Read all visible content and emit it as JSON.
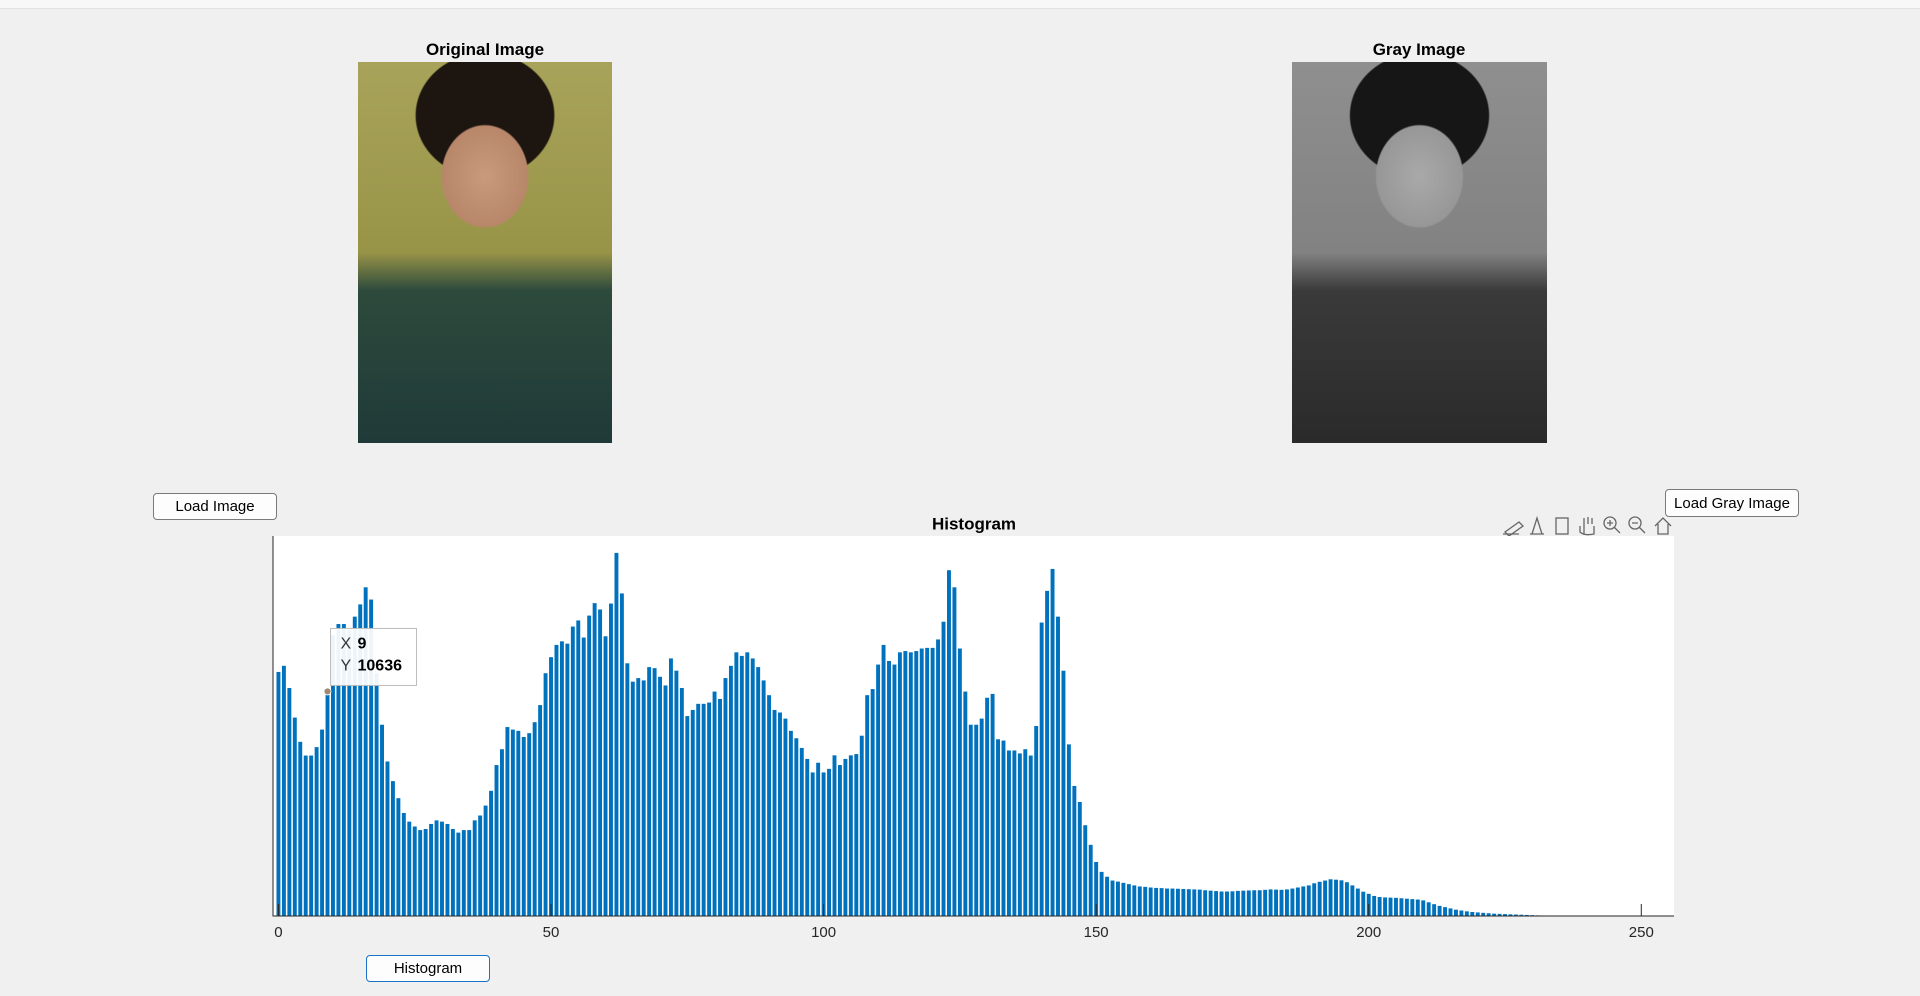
{
  "window": {
    "original_title": "Original Image",
    "gray_title": "Gray Image",
    "buttons": {
      "load_image": "Load Image",
      "load_gray_image": "Load Gray Image",
      "histogram": "Histogram"
    }
  },
  "chart_data": {
    "type": "bar",
    "title": "Histogram",
    "color": "#0072bd",
    "x": [
      0,
      1,
      2,
      3,
      4,
      5,
      6,
      7,
      8,
      9,
      10,
      11,
      12,
      13,
      14,
      15,
      16,
      17,
      18,
      19,
      20,
      21,
      22,
      23,
      24,
      25,
      26,
      27,
      28,
      29,
      30,
      31,
      32,
      33,
      34,
      35,
      36,
      37,
      38,
      39,
      40,
      41,
      42,
      43,
      44,
      45,
      46,
      47,
      48,
      49,
      50,
      51,
      52,
      53,
      54,
      55,
      56,
      57,
      58,
      59,
      60,
      61,
      62,
      63,
      64,
      65,
      66,
      67,
      68,
      69,
      70,
      71,
      72,
      73,
      74,
      75,
      76,
      77,
      78,
      79,
      80,
      81,
      82,
      83,
      84,
      85,
      86,
      87,
      88,
      89,
      90,
      91,
      92,
      93,
      94,
      95,
      96,
      97,
      98,
      99,
      100,
      101,
      102,
      103,
      104,
      105,
      106,
      107,
      108,
      109,
      110,
      111,
      112,
      113,
      114,
      115,
      116,
      117,
      118,
      119,
      120,
      121,
      122,
      123,
      124,
      125,
      126,
      127,
      128,
      129,
      130,
      131,
      132,
      133,
      134,
      135,
      136,
      137,
      138,
      139,
      140,
      141,
      142,
      143,
      144,
      145,
      146,
      147,
      148,
      149,
      150,
      151,
      152,
      153,
      154,
      155,
      156,
      157,
      158,
      159,
      160,
      161,
      162,
      163,
      164,
      165,
      166,
      167,
      168,
      169,
      170,
      171,
      172,
      173,
      174,
      175,
      176,
      177,
      178,
      179,
      180,
      181,
      182,
      183,
      184,
      185,
      186,
      187,
      188,
      189,
      190,
      191,
      192,
      193,
      194,
      195,
      196,
      197,
      198,
      199,
      200,
      201,
      202,
      203,
      204,
      205,
      206,
      207,
      208,
      209,
      210,
      211,
      212,
      213,
      214,
      215,
      216,
      217,
      218,
      219,
      220,
      221,
      222,
      223,
      224,
      225,
      226,
      227,
      228,
      229,
      230,
      231,
      232,
      233,
      234,
      235,
      236,
      237,
      238,
      239,
      240,
      241,
      242,
      243,
      244,
      245,
      246,
      247,
      248,
      249,
      250,
      251,
      252,
      253,
      254,
      255
    ],
    "values": [
      11560,
      11850,
      10800,
      9400,
      8250,
      7600,
      7600,
      8000,
      8830,
      10636,
      13300,
      13830,
      13830,
      13540,
      14180,
      14760,
      15570,
      14990,
      11500,
      9060,
      7320,
      6390,
      5580,
      4880,
      4470,
      4240,
      4070,
      4120,
      4360,
      4530,
      4470,
      4360,
      4120,
      3950,
      4070,
      4070,
      4530,
      4760,
      5230,
      5930,
      7150,
      7900,
      8950,
      8830,
      8770,
      8480,
      8660,
      9180,
      9990,
      11500,
      12260,
      12840,
      13010,
      12900,
      13710,
      14000,
      13190,
      14230,
      14820,
      14520,
      13250,
      14800,
      17200,
      15280,
      11970,
      11100,
      11270,
      11160,
      11790,
      11740,
      11330,
      10920,
      12200,
      11620,
      10800,
      9470,
      9760,
      10050,
      10050,
      10110,
      10630,
      10280,
      11270,
      11850,
      12490,
      12320,
      12490,
      12200,
      11790,
      11160,
      10460,
      9760,
      9640,
      9350,
      8770,
      8420,
      7960,
      7440,
      6800,
      7260,
      6800,
      6970,
      7610,
      7150,
      7440,
      7610,
      7670,
      8540,
      10460,
      10750,
      11910,
      12840,
      12080,
      11910,
      12490,
      12550,
      12490,
      12550,
      12670,
      12700,
      12700,
      13100,
      13940,
      16380,
      15570,
      12670,
      10630,
      9060,
      9060,
      9350,
      10340,
      10520,
      8370,
      8310,
      7840,
      7840,
      7700,
      7900,
      7600,
      9000,
      13900,
      15400,
      16440,
      14180,
      11620,
      8130,
      6160,
      5400,
      4300,
      3370,
      2560,
      2090,
      1860,
      1680,
      1630,
      1570,
      1510,
      1450,
      1400,
      1380,
      1350,
      1330,
      1320,
      1300,
      1300,
      1290,
      1280,
      1270,
      1260,
      1250,
      1220,
      1200,
      1180,
      1160,
      1160,
      1170,
      1190,
      1200,
      1210,
      1220,
      1220,
      1240,
      1260,
      1250,
      1240,
      1260,
      1300,
      1350,
      1400,
      1450,
      1550,
      1620,
      1680,
      1740,
      1720,
      1690,
      1600,
      1450,
      1300,
      1150,
      1050,
      950,
      900,
      880,
      870,
      860,
      840,
      820,
      800,
      780,
      740,
      650,
      560,
      480,
      420,
      360,
      300,
      260,
      220,
      190,
      170,
      150,
      130,
      110,
      100,
      90,
      80,
      70,
      60,
      50,
      40,
      30,
      25,
      20,
      15,
      10,
      0,
      0,
      0,
      0,
      0,
      0,
      0,
      0,
      0,
      0,
      0,
      0,
      0,
      0,
      0,
      0,
      0,
      0,
      0,
      0
    ],
    "xlim": [
      -1,
      256
    ],
    "ylim": [
      0,
      18000
    ],
    "xticks": [
      0,
      50,
      100,
      150,
      200,
      250
    ],
    "datatip": {
      "x_label": "X",
      "x": 9,
      "y_label": "Y",
      "y": 10636
    }
  }
}
